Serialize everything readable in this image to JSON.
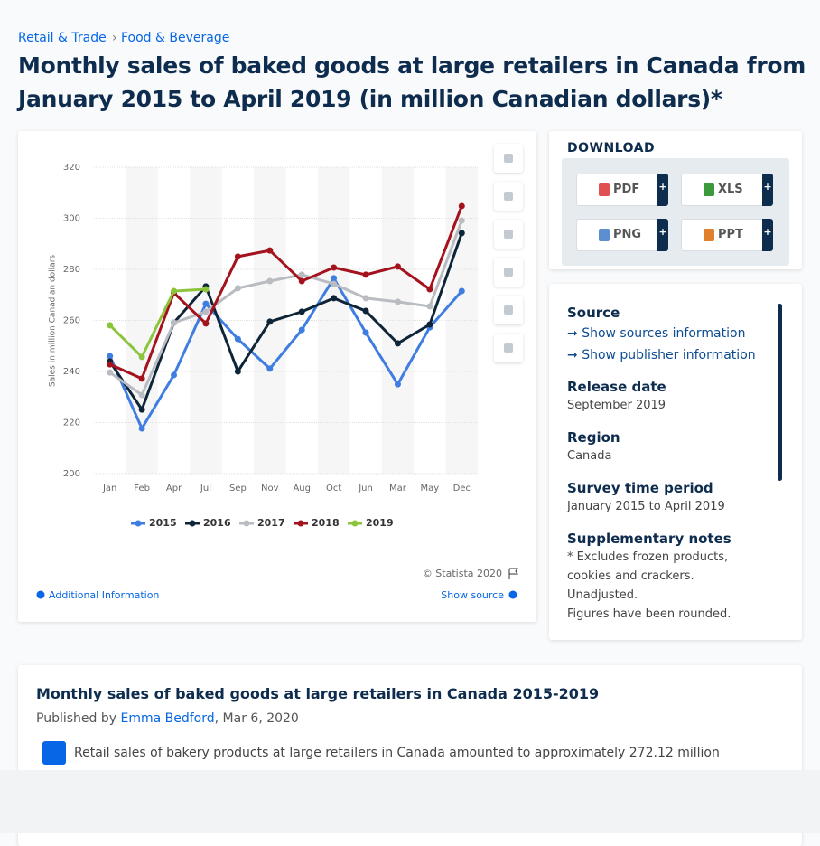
{
  "breadcrumbs": [
    "Retail & Trade",
    "Food & Beverage"
  ],
  "title_lines": [
    "Monthly sales of baked goods at large retailers in Canada from",
    "January 2015 to April 2019 (in million Canadian dollars)*"
  ],
  "chart_data": {
    "type": "line",
    "y_label": "Sales in million Canadian dollars",
    "categories": [
      "Jan",
      "Feb",
      "Apr",
      "Jul",
      "Sep",
      "Nov",
      "Aug",
      "Oct",
      "Jun",
      "Mar",
      "May",
      "Dec"
    ],
    "series": [
      {
        "name": "2015",
        "color": "#3f7de0",
        "values": [
          246.0,
          217.7,
          238.6,
          266.5,
          252.7,
          241.1,
          256.3,
          276.5,
          255.2,
          235.0,
          257.3,
          271.5
        ]
      },
      {
        "name": "2016",
        "color": "#0e2538",
        "values": [
          243.9,
          225.1,
          259.1,
          273.3,
          240.0,
          259.5,
          263.4,
          268.7,
          263.7,
          251.0,
          258.4,
          294.2
        ]
      },
      {
        "name": "2017",
        "color": "#b9bcc0",
        "values": [
          239.6,
          230.8,
          259.1,
          263.4,
          272.6,
          275.4,
          277.9,
          274.3,
          268.7,
          267.3,
          265.5,
          299.1
        ]
      },
      {
        "name": "2018",
        "color": "#a4121d",
        "values": [
          242.8,
          237.2,
          270.8,
          258.8,
          285.0,
          287.4,
          275.4,
          280.7,
          277.9,
          281.1,
          272.2,
          304.8
        ]
      },
      {
        "name": "2019",
        "color": "#8cc43c",
        "values": [
          258.1,
          245.7,
          271.5,
          272.2,
          null,
          null,
          null,
          null,
          null,
          null,
          null,
          null
        ]
      }
    ],
    "ylim": [
      200,
      320
    ],
    "yticks": [
      200,
      220,
      240,
      260,
      280,
      300,
      320
    ],
    "grid": true,
    "legend": "bottom"
  },
  "chart_footer": {
    "copyright": "© Statista 2020",
    "additional": "Additional Information",
    "show_source": "Show source"
  },
  "download": {
    "heading": "DOWNLOAD",
    "buttons": [
      "PDF",
      "XLS",
      "PNG",
      "PPT"
    ],
    "plus": "+"
  },
  "details": {
    "source_heading": "Source",
    "links": [
      "Show sources information",
      "Show publisher information"
    ],
    "sections": [
      {
        "heading": "Release date",
        "lines": [
          "September 2019"
        ]
      },
      {
        "heading": "Region",
        "lines": [
          "Canada"
        ]
      },
      {
        "heading": "Survey time period",
        "lines": [
          "January 2015 to April 2019"
        ]
      },
      {
        "heading": "Supplementary notes",
        "lines": [
          "* Excludes frozen products,",
          "cookies and crackers.",
          "Unadjusted.",
          "Figures have been rounded."
        ]
      }
    ]
  },
  "article": {
    "title": "Monthly sales of baked goods at large retailers in Canada 2015-2019",
    "published_by": "Published by",
    "author": "Emma Bedford",
    "date": ", Mar 6, 2020",
    "text": "Retail sales of bakery products at large retailers in Canada amounted to approximately 272.12 million"
  }
}
